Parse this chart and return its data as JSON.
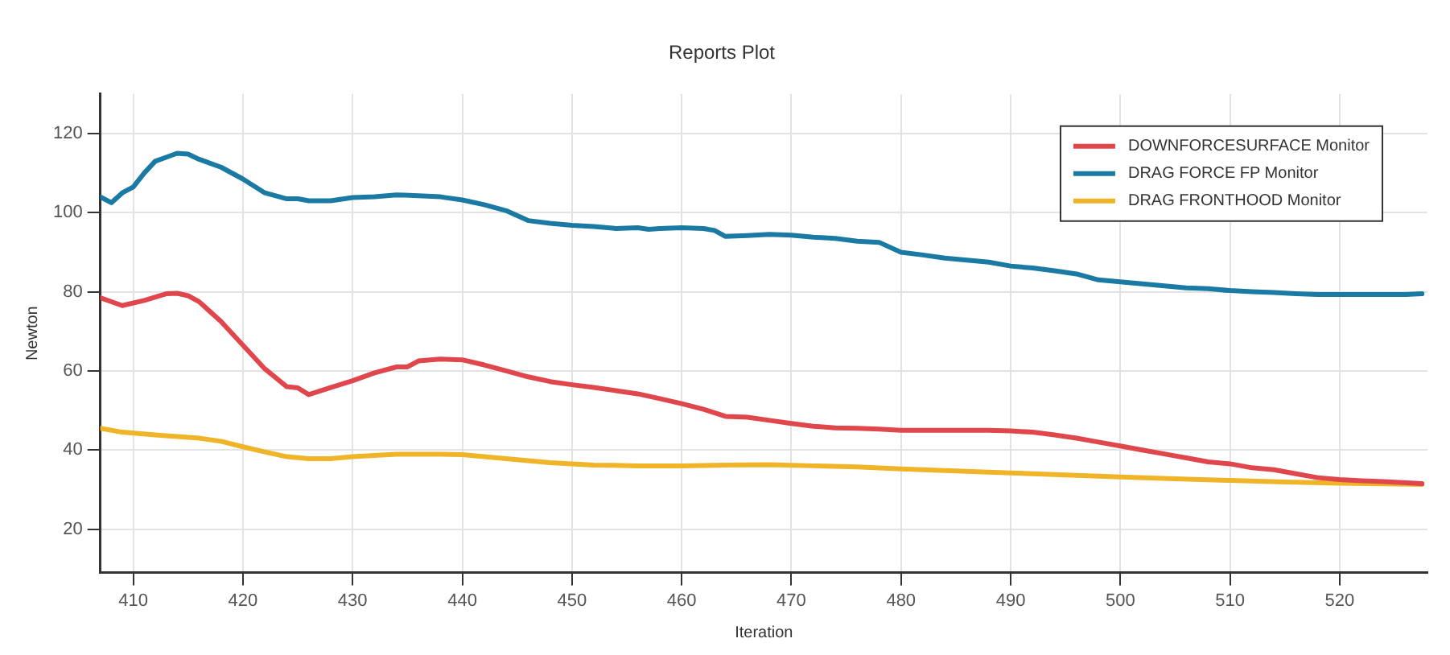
{
  "chart_data": {
    "type": "line",
    "title": "Reports Plot",
    "xlabel": "Iteration",
    "ylabel": "Newton",
    "xlim": [
      407,
      528
    ],
    "xticks": [
      410,
      420,
      430,
      440,
      450,
      460,
      470,
      480,
      490,
      500,
      510,
      520
    ],
    "ylim": [
      9,
      130
    ],
    "yticks": [
      20,
      40,
      60,
      80,
      100,
      120
    ],
    "grid": true,
    "legend": "top right",
    "marker": "none",
    "line_style": "solid",
    "series": [
      {
        "name": "DOWNFORCESURFACE Monitor",
        "color": "#e0474c",
        "x": [
          407,
          409,
          411,
          413,
          414,
          415,
          416,
          418,
          420,
          422,
          424,
          425,
          426,
          428,
          430,
          432,
          434,
          435,
          436,
          438,
          440,
          442,
          444,
          446,
          448,
          450,
          452,
          454,
          456,
          458,
          460,
          462,
          464,
          466,
          468,
          470,
          472,
          474,
          476,
          478,
          480,
          484,
          488,
          490,
          492,
          494,
          496,
          498,
          500,
          502,
          504,
          506,
          508,
          510,
          512,
          514,
          516,
          518,
          520,
          522,
          524,
          527.5
        ],
        "values": [
          78.5,
          76.5,
          77.8,
          79.5,
          79.6,
          79,
          77.5,
          72.5,
          66.5,
          60.5,
          56,
          55.7,
          54,
          55.8,
          57.5,
          59.5,
          61,
          61,
          62.5,
          63,
          62.8,
          61.5,
          60,
          58.5,
          57.3,
          56.5,
          55.8,
          55,
          54.2,
          53,
          51.7,
          50.3,
          48.5,
          48.3,
          47.5,
          46.7,
          46,
          45.6,
          45.5,
          45.3,
          45,
          45,
          45,
          44.8,
          44.5,
          43.8,
          43,
          42,
          41,
          40,
          39,
          38,
          37,
          36.5,
          35.5,
          35,
          34,
          33,
          32.5,
          32.2,
          32,
          31.5
        ]
      },
      {
        "name": "DRAG FORCE FP Monitor",
        "color": "#1a7aa3",
        "x": [
          407,
          408,
          409,
          410,
          411,
          412,
          413,
          414,
          415,
          416,
          417,
          418,
          420,
          422,
          424,
          425,
          426,
          428,
          430,
          432,
          434,
          436,
          438,
          440,
          442,
          444,
          446,
          448,
          450,
          452,
          454,
          456,
          457,
          458,
          460,
          462,
          463,
          464,
          466,
          468,
          470,
          472,
          474,
          476,
          478,
          480,
          482,
          484,
          486,
          488,
          490,
          492,
          494,
          496,
          498,
          500,
          502,
          504,
          506,
          508,
          510,
          512,
          514,
          516,
          518,
          520,
          522,
          524,
          526,
          527.5
        ],
        "values": [
          104,
          102.5,
          105,
          106.5,
          110,
          113,
          114,
          115,
          114.8,
          113.5,
          112.5,
          111.5,
          108.5,
          105,
          103.5,
          103.5,
          103,
          103,
          103.8,
          104,
          104.5,
          104.3,
          104,
          103.2,
          102,
          100.5,
          98,
          97.3,
          96.8,
          96.5,
          96,
          96.2,
          95.8,
          96,
          96.2,
          96,
          95.5,
          94,
          94.2,
          94.5,
          94.3,
          93.8,
          93.5,
          92.8,
          92.5,
          90,
          89.3,
          88.5,
          88,
          87.5,
          86.5,
          86,
          85.3,
          84.5,
          83,
          82.5,
          82,
          81.5,
          81,
          80.8,
          80.3,
          80,
          79.8,
          79.5,
          79.3,
          79.3,
          79.3,
          79.3,
          79.3,
          79.5
        ]
      },
      {
        "name": "DRAG FRONTHOOD Monitor",
        "color": "#f0b429",
        "x": [
          407,
          409,
          412,
          416,
          418,
          420,
          422,
          424,
          426,
          428,
          430,
          434,
          438,
          440,
          444,
          448,
          452,
          456,
          460,
          464,
          468,
          472,
          476,
          480,
          485,
          490,
          495,
          500,
          505,
          510,
          515,
          520,
          527.5
        ],
        "values": [
          45.5,
          44.5,
          43.8,
          43,
          42.2,
          40.8,
          39.5,
          38.3,
          37.8,
          37.8,
          38.3,
          38.9,
          38.9,
          38.8,
          37.8,
          36.8,
          36.2,
          36,
          36,
          36.2,
          36.3,
          36,
          35.7,
          35.2,
          34.7,
          34.2,
          33.7,
          33.2,
          32.7,
          32.3,
          31.9,
          31.6,
          31.3
        ]
      }
    ]
  }
}
